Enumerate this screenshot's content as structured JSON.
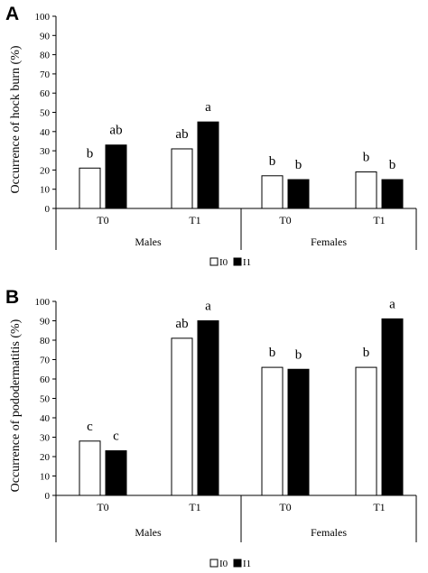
{
  "chart_data": [
    {
      "type": "bar",
      "panel": "A",
      "ylabel": "Occurrence of hock burn (%)",
      "ylim": [
        0,
        100
      ],
      "yticks": [
        0,
        10,
        20,
        30,
        40,
        50,
        60,
        70,
        80,
        90,
        100
      ],
      "categories": [
        "T0",
        "T1",
        "T0",
        "T1"
      ],
      "groups": [
        "Males",
        "Females"
      ],
      "series": [
        {
          "name": "I0",
          "color": "#ffffff",
          "values": [
            21,
            31,
            17,
            19
          ]
        },
        {
          "name": "I1",
          "color": "#000000",
          "values": [
            33,
            45,
            15,
            15
          ]
        }
      ],
      "annotations": [
        [
          "b",
          "ab"
        ],
        [
          "ab",
          "a"
        ],
        [
          "b",
          "b"
        ],
        [
          "b",
          "b"
        ]
      ],
      "legend": [
        "I0",
        "I1"
      ],
      "legend_position": "bottom"
    },
    {
      "type": "bar",
      "panel": "B",
      "ylabel": "Occurrence of pododermatitis (%)",
      "ylim": [
        0,
        100
      ],
      "yticks": [
        0,
        10,
        20,
        30,
        40,
        50,
        60,
        70,
        80,
        90,
        100
      ],
      "categories": [
        "T0",
        "T1",
        "T0",
        "T1"
      ],
      "groups": [
        "Males",
        "Females"
      ],
      "series": [
        {
          "name": "I0",
          "color": "#ffffff",
          "values": [
            28,
            81,
            66,
            66
          ]
        },
        {
          "name": "I1",
          "color": "#000000",
          "values": [
            23,
            90,
            65,
            91
          ]
        }
      ],
      "annotations": [
        [
          "c",
          "c"
        ],
        [
          "ab",
          "a"
        ],
        [
          "b",
          "b"
        ],
        [
          "b",
          "a"
        ]
      ],
      "legend": [
        "I0",
        "I1"
      ],
      "legend_position": "bottom"
    }
  ]
}
